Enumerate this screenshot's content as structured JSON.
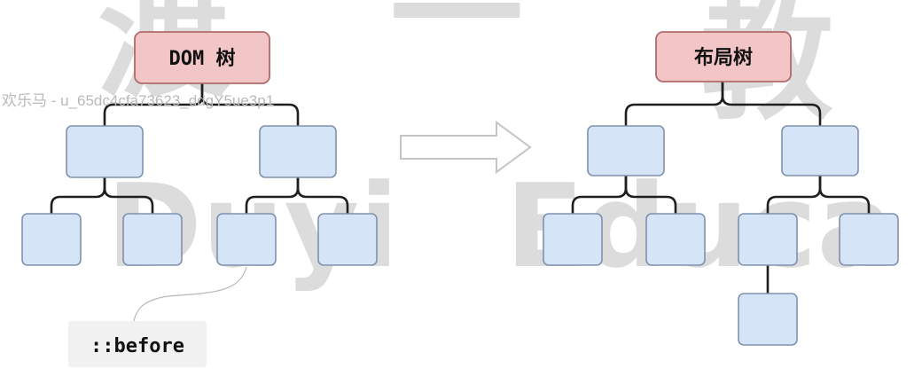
{
  "watermark": {
    "top_glyphs": [
      "渡",
      "一",
      "教"
    ],
    "brand_words": [
      "Duyi",
      "Educa"
    ],
    "user_line": "欢乐马 - u_65dc4cfa73623_ddgY5ue3p1"
  },
  "left_tree": {
    "root_label": "DOM 树"
  },
  "right_tree": {
    "root_label": "布局树"
  },
  "callout": {
    "text": "::before"
  },
  "colors": {
    "root_fill": "#f2c6c6",
    "node_fill": "#d6e4f7",
    "edge": "#1f1f1f"
  }
}
